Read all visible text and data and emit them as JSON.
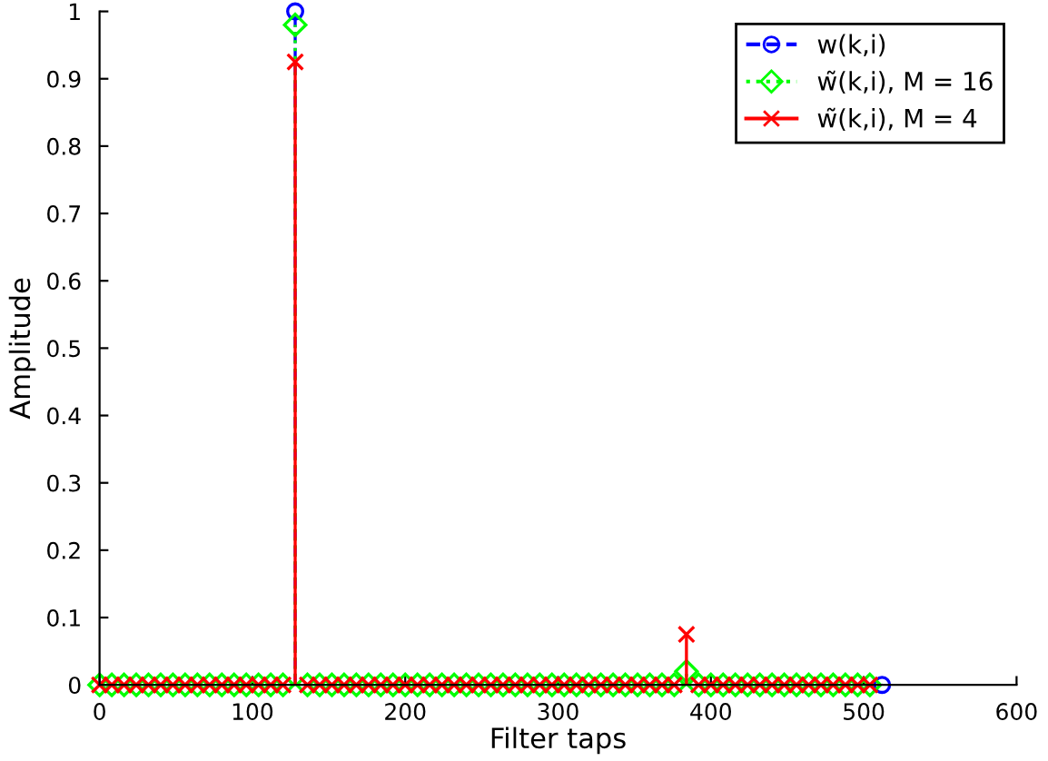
{
  "chart_data": {
    "type": "lollipop",
    "xlabel": "Filter taps",
    "ylabel": "Amplitude",
    "x": [
      0,
      8,
      16,
      24,
      32,
      40,
      48,
      56,
      64,
      72,
      80,
      88,
      96,
      104,
      112,
      120,
      128,
      136,
      144,
      152,
      160,
      168,
      176,
      184,
      192,
      200,
      208,
      216,
      224,
      232,
      240,
      248,
      256,
      264,
      272,
      280,
      288,
      296,
      304,
      312,
      320,
      328,
      336,
      344,
      352,
      360,
      368,
      376,
      384,
      392,
      400,
      408,
      416,
      424,
      432,
      440,
      448,
      456,
      464,
      472,
      480,
      488,
      496,
      504,
      512
    ],
    "series": [
      {
        "name": "w(k,i)",
        "color": "#0000ff",
        "marker": "circle",
        "line_style": "dashed",
        "values": [
          null,
          null,
          null,
          null,
          null,
          null,
          null,
          null,
          null,
          null,
          null,
          null,
          null,
          null,
          null,
          null,
          1,
          null,
          null,
          null,
          null,
          null,
          null,
          null,
          null,
          null,
          null,
          null,
          null,
          null,
          null,
          null,
          null,
          null,
          null,
          null,
          null,
          null,
          null,
          null,
          null,
          null,
          null,
          null,
          null,
          null,
          null,
          null,
          null,
          null,
          null,
          null,
          null,
          null,
          null,
          null,
          null,
          null,
          null,
          null,
          null,
          null,
          null,
          null,
          0
        ]
      },
      {
        "name": "w̃(k,i), M = 16",
        "color": "#00ff00",
        "marker": "diamond",
        "line_style": "dotted",
        "values": [
          0,
          0,
          0,
          0,
          0,
          0,
          0,
          0,
          0,
          0,
          0,
          0,
          0,
          0,
          0,
          0,
          0.98,
          0,
          0,
          0,
          0,
          0,
          0,
          0,
          0,
          0,
          0,
          0,
          0,
          0,
          0,
          0,
          0,
          0,
          0,
          0,
          0,
          0,
          0,
          0,
          0,
          0,
          0,
          0,
          0,
          0,
          0,
          0,
          0.02,
          0,
          0,
          0,
          0,
          0,
          0,
          0,
          0,
          0,
          0,
          0,
          0,
          0,
          0,
          0,
          null
        ]
      },
      {
        "name": "w̃(k,i), M = 4",
        "color": "#ff0000",
        "marker": "cross",
        "line_style": "solid",
        "values": [
          0,
          0,
          0,
          0,
          0,
          0,
          0,
          0,
          0,
          0,
          0,
          0,
          0,
          0,
          0,
          0,
          0.925,
          0,
          0,
          0,
          0,
          0,
          0,
          0,
          0,
          0,
          0,
          0,
          0,
          0,
          0,
          0,
          0,
          0,
          0,
          0,
          0,
          0,
          0,
          0,
          0,
          0,
          0,
          0,
          0,
          0,
          0,
          0,
          0.075,
          0,
          0,
          0,
          0,
          0,
          0,
          0,
          0,
          0,
          0,
          0,
          0,
          0,
          0,
          0,
          null
        ]
      }
    ],
    "xlim": [
      0,
      600
    ],
    "xticks": [
      0,
      100,
      200,
      300,
      400,
      500,
      600
    ],
    "ylim": [
      0,
      1
    ],
    "yticks": [
      0,
      0.1,
      0.2,
      0.3,
      0.4,
      0.5,
      0.6,
      0.7,
      0.8,
      0.9,
      1
    ],
    "grid": false,
    "legend": "top right"
  }
}
